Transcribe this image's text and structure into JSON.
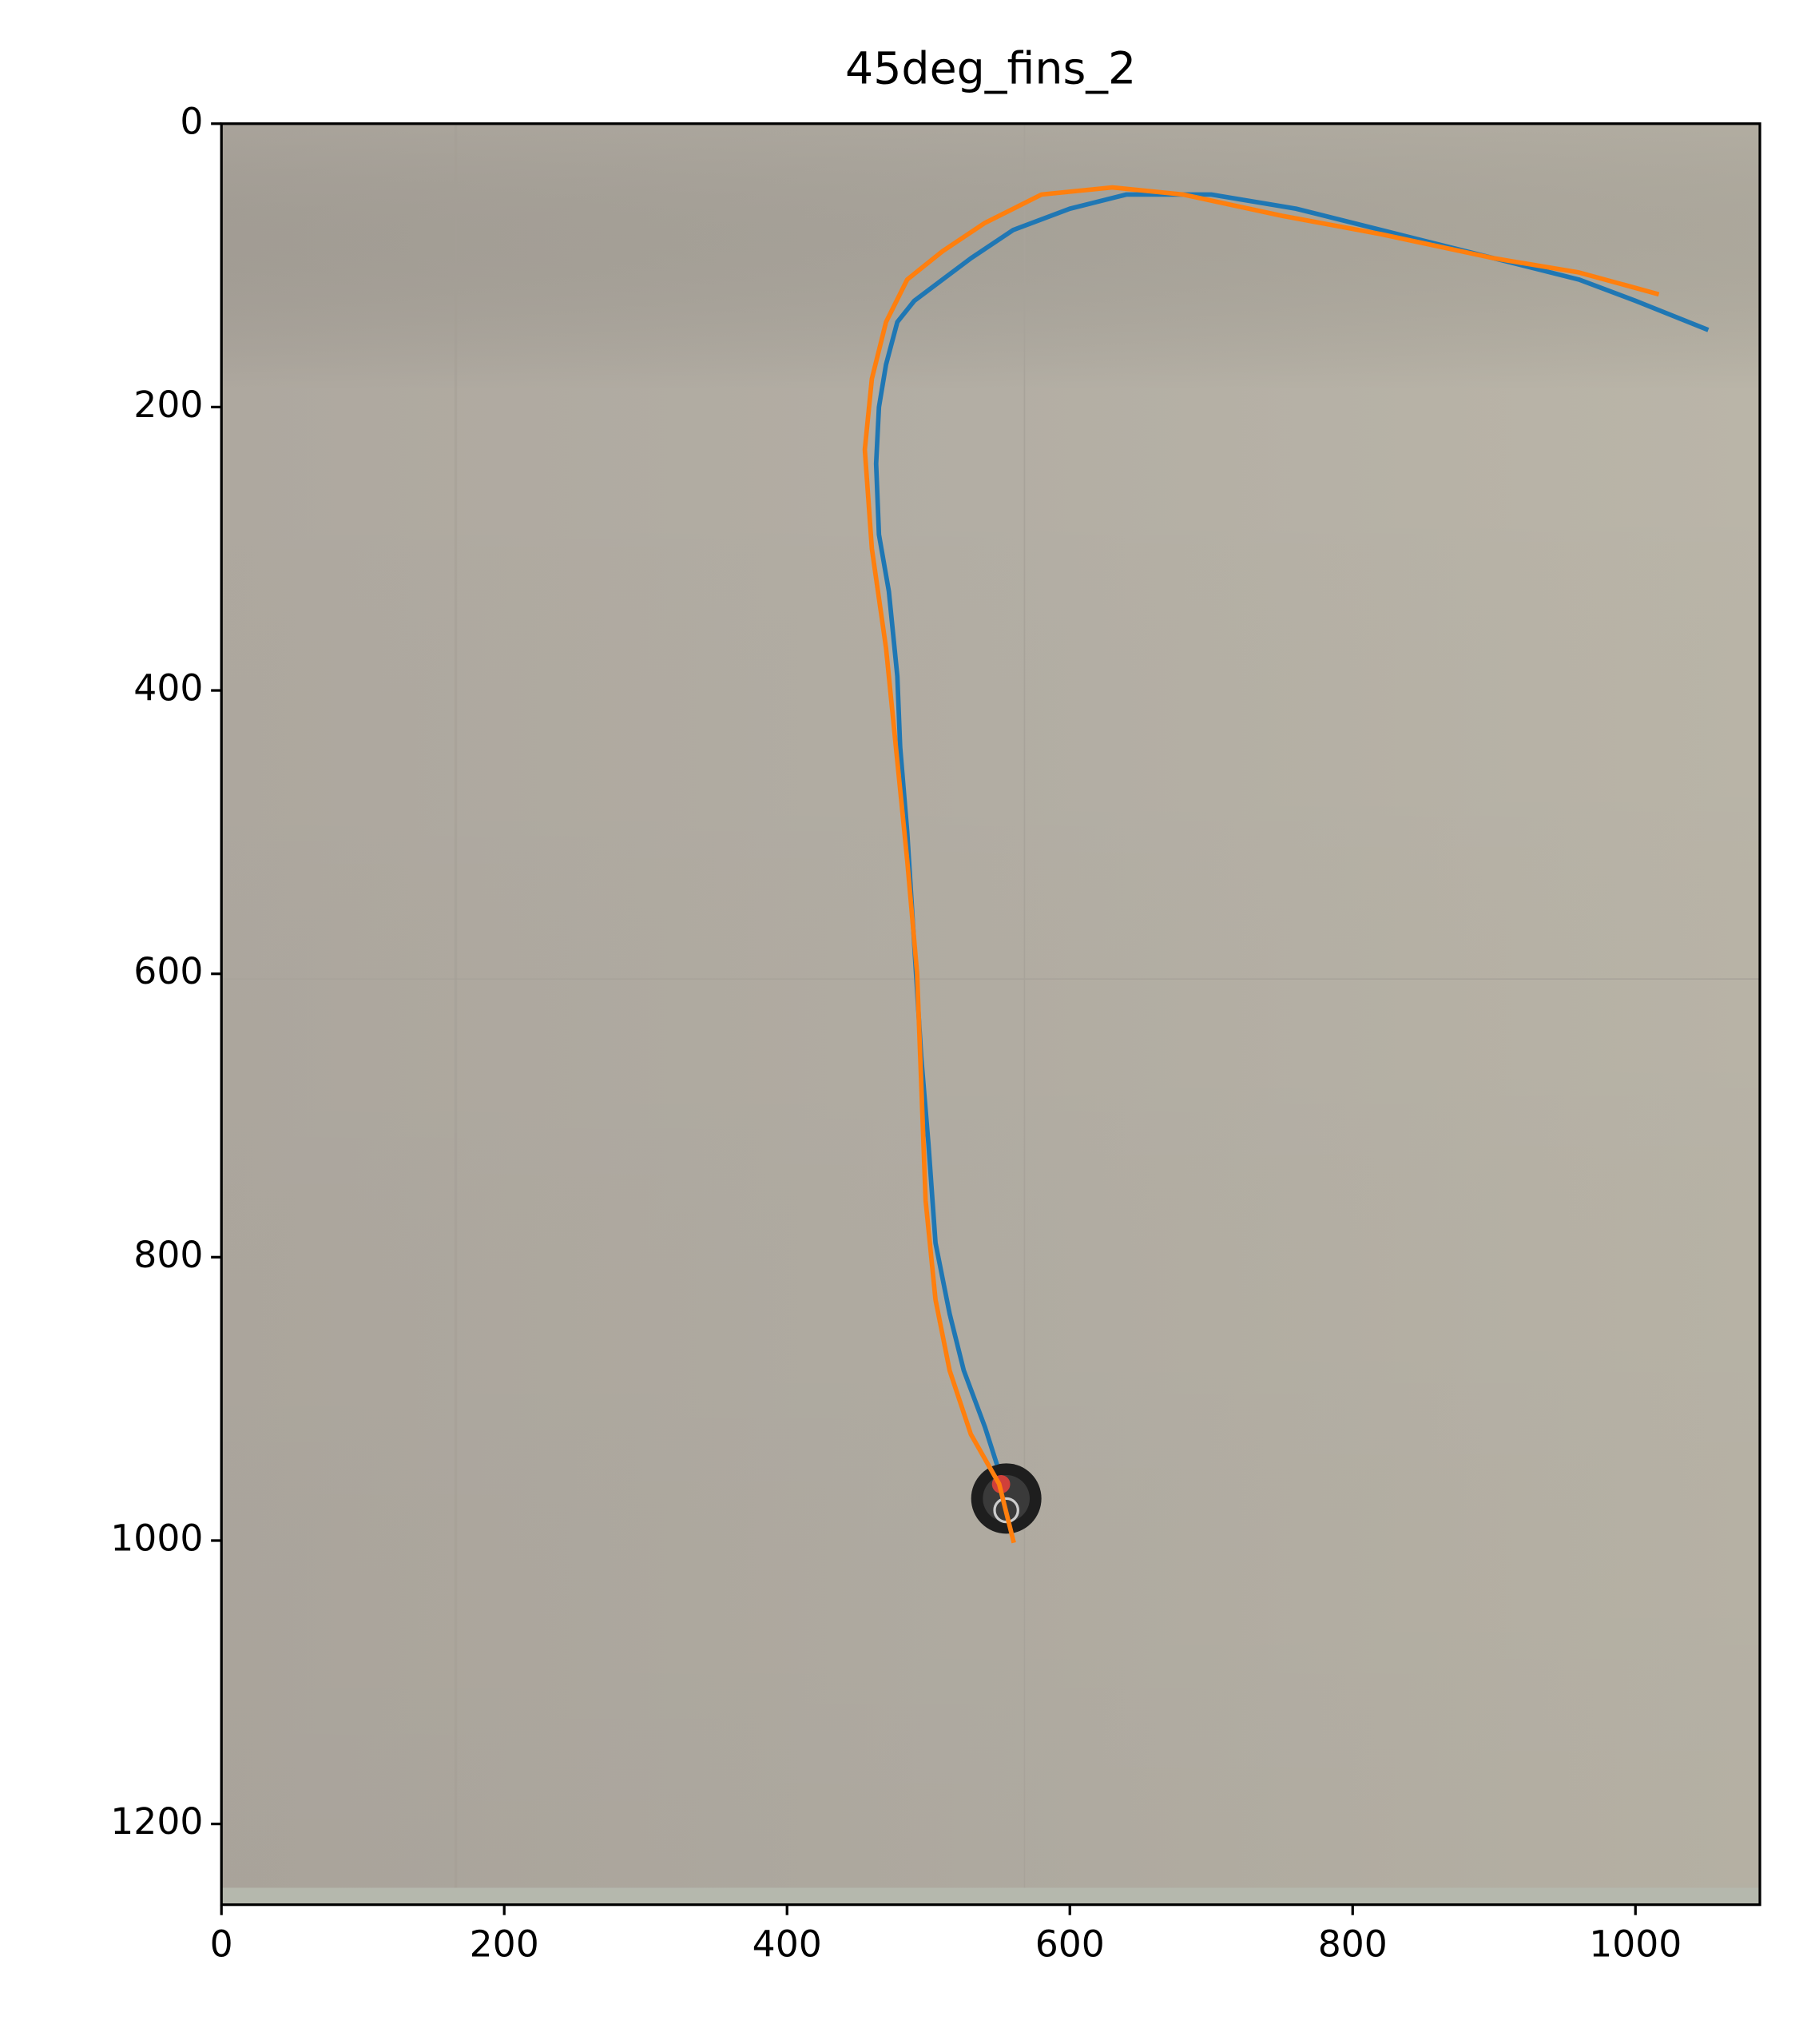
{
  "chart_data": {
    "type": "line",
    "title": "45deg_fins_2",
    "xlim": [
      0,
      1088
    ],
    "ylim": [
      1257,
      0
    ],
    "xticks": [
      0,
      200,
      400,
      600,
      800,
      1000
    ],
    "yticks": [
      0,
      200,
      400,
      600,
      800,
      1000,
      1200
    ],
    "series": [
      {
        "color": "#1f77b4",
        "x": [
          548,
          540,
          525,
          515,
          505,
          500,
          495,
          490,
          485,
          480,
          478,
          472,
          465,
          463,
          465,
          470,
          478,
          490,
          510,
          530,
          560,
          600,
          640,
          700,
          760,
          820,
          880,
          920,
          960,
          1000,
          1050
        ],
        "y": [
          945,
          920,
          880,
          840,
          790,
          720,
          660,
          580,
          500,
          440,
          390,
          330,
          290,
          240,
          200,
          170,
          140,
          125,
          110,
          95,
          75,
          60,
          50,
          50,
          60,
          75,
          90,
          100,
          110,
          125,
          145
        ]
      },
      {
        "color": "#ff7f0e",
        "x": [
          560,
          550,
          530,
          515,
          505,
          498,
          495,
          492,
          485,
          478,
          470,
          460,
          455,
          460,
          470,
          485,
          510,
          540,
          580,
          630,
          680,
          750,
          820,
          900,
          960,
          1015
        ],
        "y": [
          1000,
          960,
          925,
          880,
          830,
          760,
          680,
          600,
          520,
          450,
          370,
          300,
          230,
          180,
          140,
          110,
          90,
          70,
          50,
          45,
          50,
          65,
          78,
          95,
          105,
          120
        ]
      }
    ]
  }
}
